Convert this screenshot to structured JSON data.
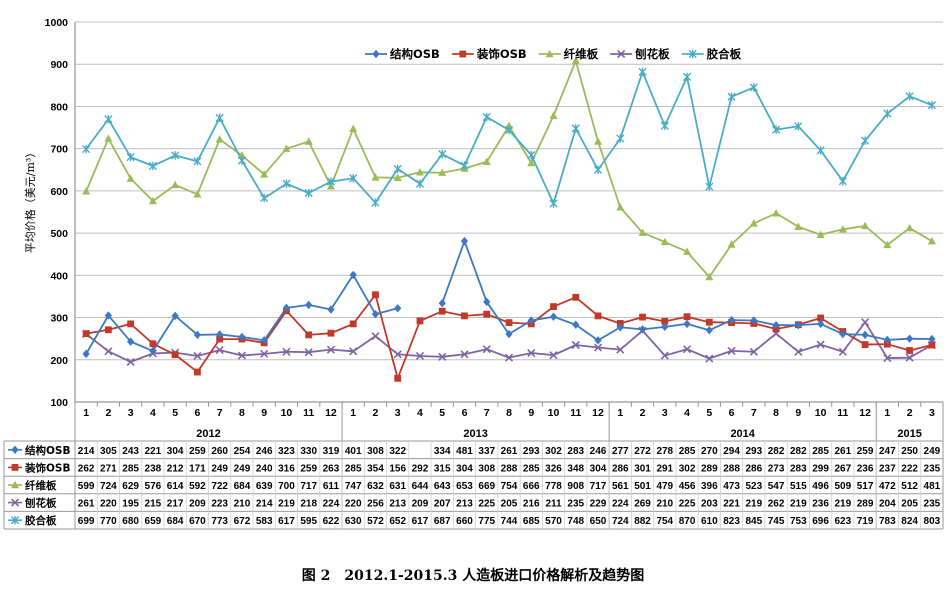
{
  "chart_data": {
    "type": "line",
    "caption": "图 2　2012.1-2015.3  人造板进口价格解析及趋势图",
    "ylabel": "平均价格（美元/m³）",
    "ylim": [
      100,
      1000
    ],
    "yticks": [
      100,
      200,
      300,
      400,
      500,
      600,
      700,
      800,
      900,
      1000
    ],
    "grid": true,
    "legend_position": "top-center",
    "years": [
      {
        "label": "2012",
        "start": 0,
        "end": 11
      },
      {
        "label": "2013",
        "start": 12,
        "end": 23
      },
      {
        "label": "2014",
        "start": 24,
        "end": 35
      },
      {
        "label": "2015",
        "start": 36,
        "end": 38
      }
    ],
    "categories": [
      "1",
      "2",
      "3",
      "4",
      "5",
      "6",
      "7",
      "8",
      "9",
      "10",
      "11",
      "12",
      "1",
      "2",
      "3",
      "4",
      "5",
      "6",
      "7",
      "8",
      "9",
      "10",
      "11",
      "12",
      "1",
      "2",
      "3",
      "4",
      "5",
      "6",
      "7",
      "8",
      "9",
      "10",
      "11",
      "12",
      "1",
      "2",
      "3"
    ],
    "series": [
      {
        "name": "结构OSB",
        "color": "#3C78C3",
        "marker": "diamond",
        "values": [
          214,
          305,
          243,
          221,
          304,
          259,
          260,
          254,
          246,
          323,
          330,
          319,
          401,
          308,
          322,
          null,
          334,
          481,
          337,
          261,
          293,
          302,
          283,
          246,
          277,
          272,
          278,
          285,
          270,
          294,
          293,
          282,
          282,
          285,
          261,
          259,
          247,
          250,
          249
        ]
      },
      {
        "name": "装饰OSB",
        "color": "#C0392B",
        "marker": "square",
        "values": [
          262,
          271,
          285,
          238,
          212,
          171,
          249,
          249,
          240,
          316,
          259,
          263,
          285,
          354,
          156,
          292,
          315,
          304,
          308,
          288,
          285,
          326,
          348,
          304,
          286,
          301,
          291,
          302,
          289,
          288,
          286,
          273,
          283,
          299,
          267,
          236,
          237,
          222,
          235
        ]
      },
      {
        "name": "纤维板",
        "color": "#9BBB59",
        "marker": "triangle",
        "values": [
          599,
          724,
          629,
          576,
          614,
          592,
          722,
          684,
          639,
          700,
          717,
          611,
          747,
          632,
          631,
          644,
          643,
          653,
          669,
          754,
          666,
          778,
          908,
          717,
          561,
          501,
          479,
          456,
          396,
          473,
          523,
          547,
          515,
          496,
          509,
          517,
          472,
          512,
          481
        ]
      },
      {
        "name": "刨花板",
        "color": "#8064A2",
        "marker": "x",
        "values": [
          261,
          220,
          195,
          215,
          217,
          209,
          223,
          210,
          214,
          219,
          218,
          224,
          220,
          256,
          213,
          209,
          207,
          213,
          225,
          205,
          216,
          211,
          235,
          229,
          224,
          269,
          210,
          225,
          203,
          221,
          219,
          262,
          219,
          236,
          219,
          289,
          204,
          205,
          235
        ]
      },
      {
        "name": "胶合板",
        "color": "#4BACC6",
        "marker": "star",
        "values": [
          699,
          770,
          680,
          659,
          684,
          670,
          773,
          672,
          583,
          617,
          595,
          622,
          630,
          572,
          652,
          617,
          687,
          660,
          775,
          744,
          685,
          570,
          748,
          650,
          724,
          882,
          754,
          870,
          610,
          823,
          845,
          745,
          753,
          696,
          623,
          719,
          783,
          824,
          803
        ]
      }
    ]
  }
}
